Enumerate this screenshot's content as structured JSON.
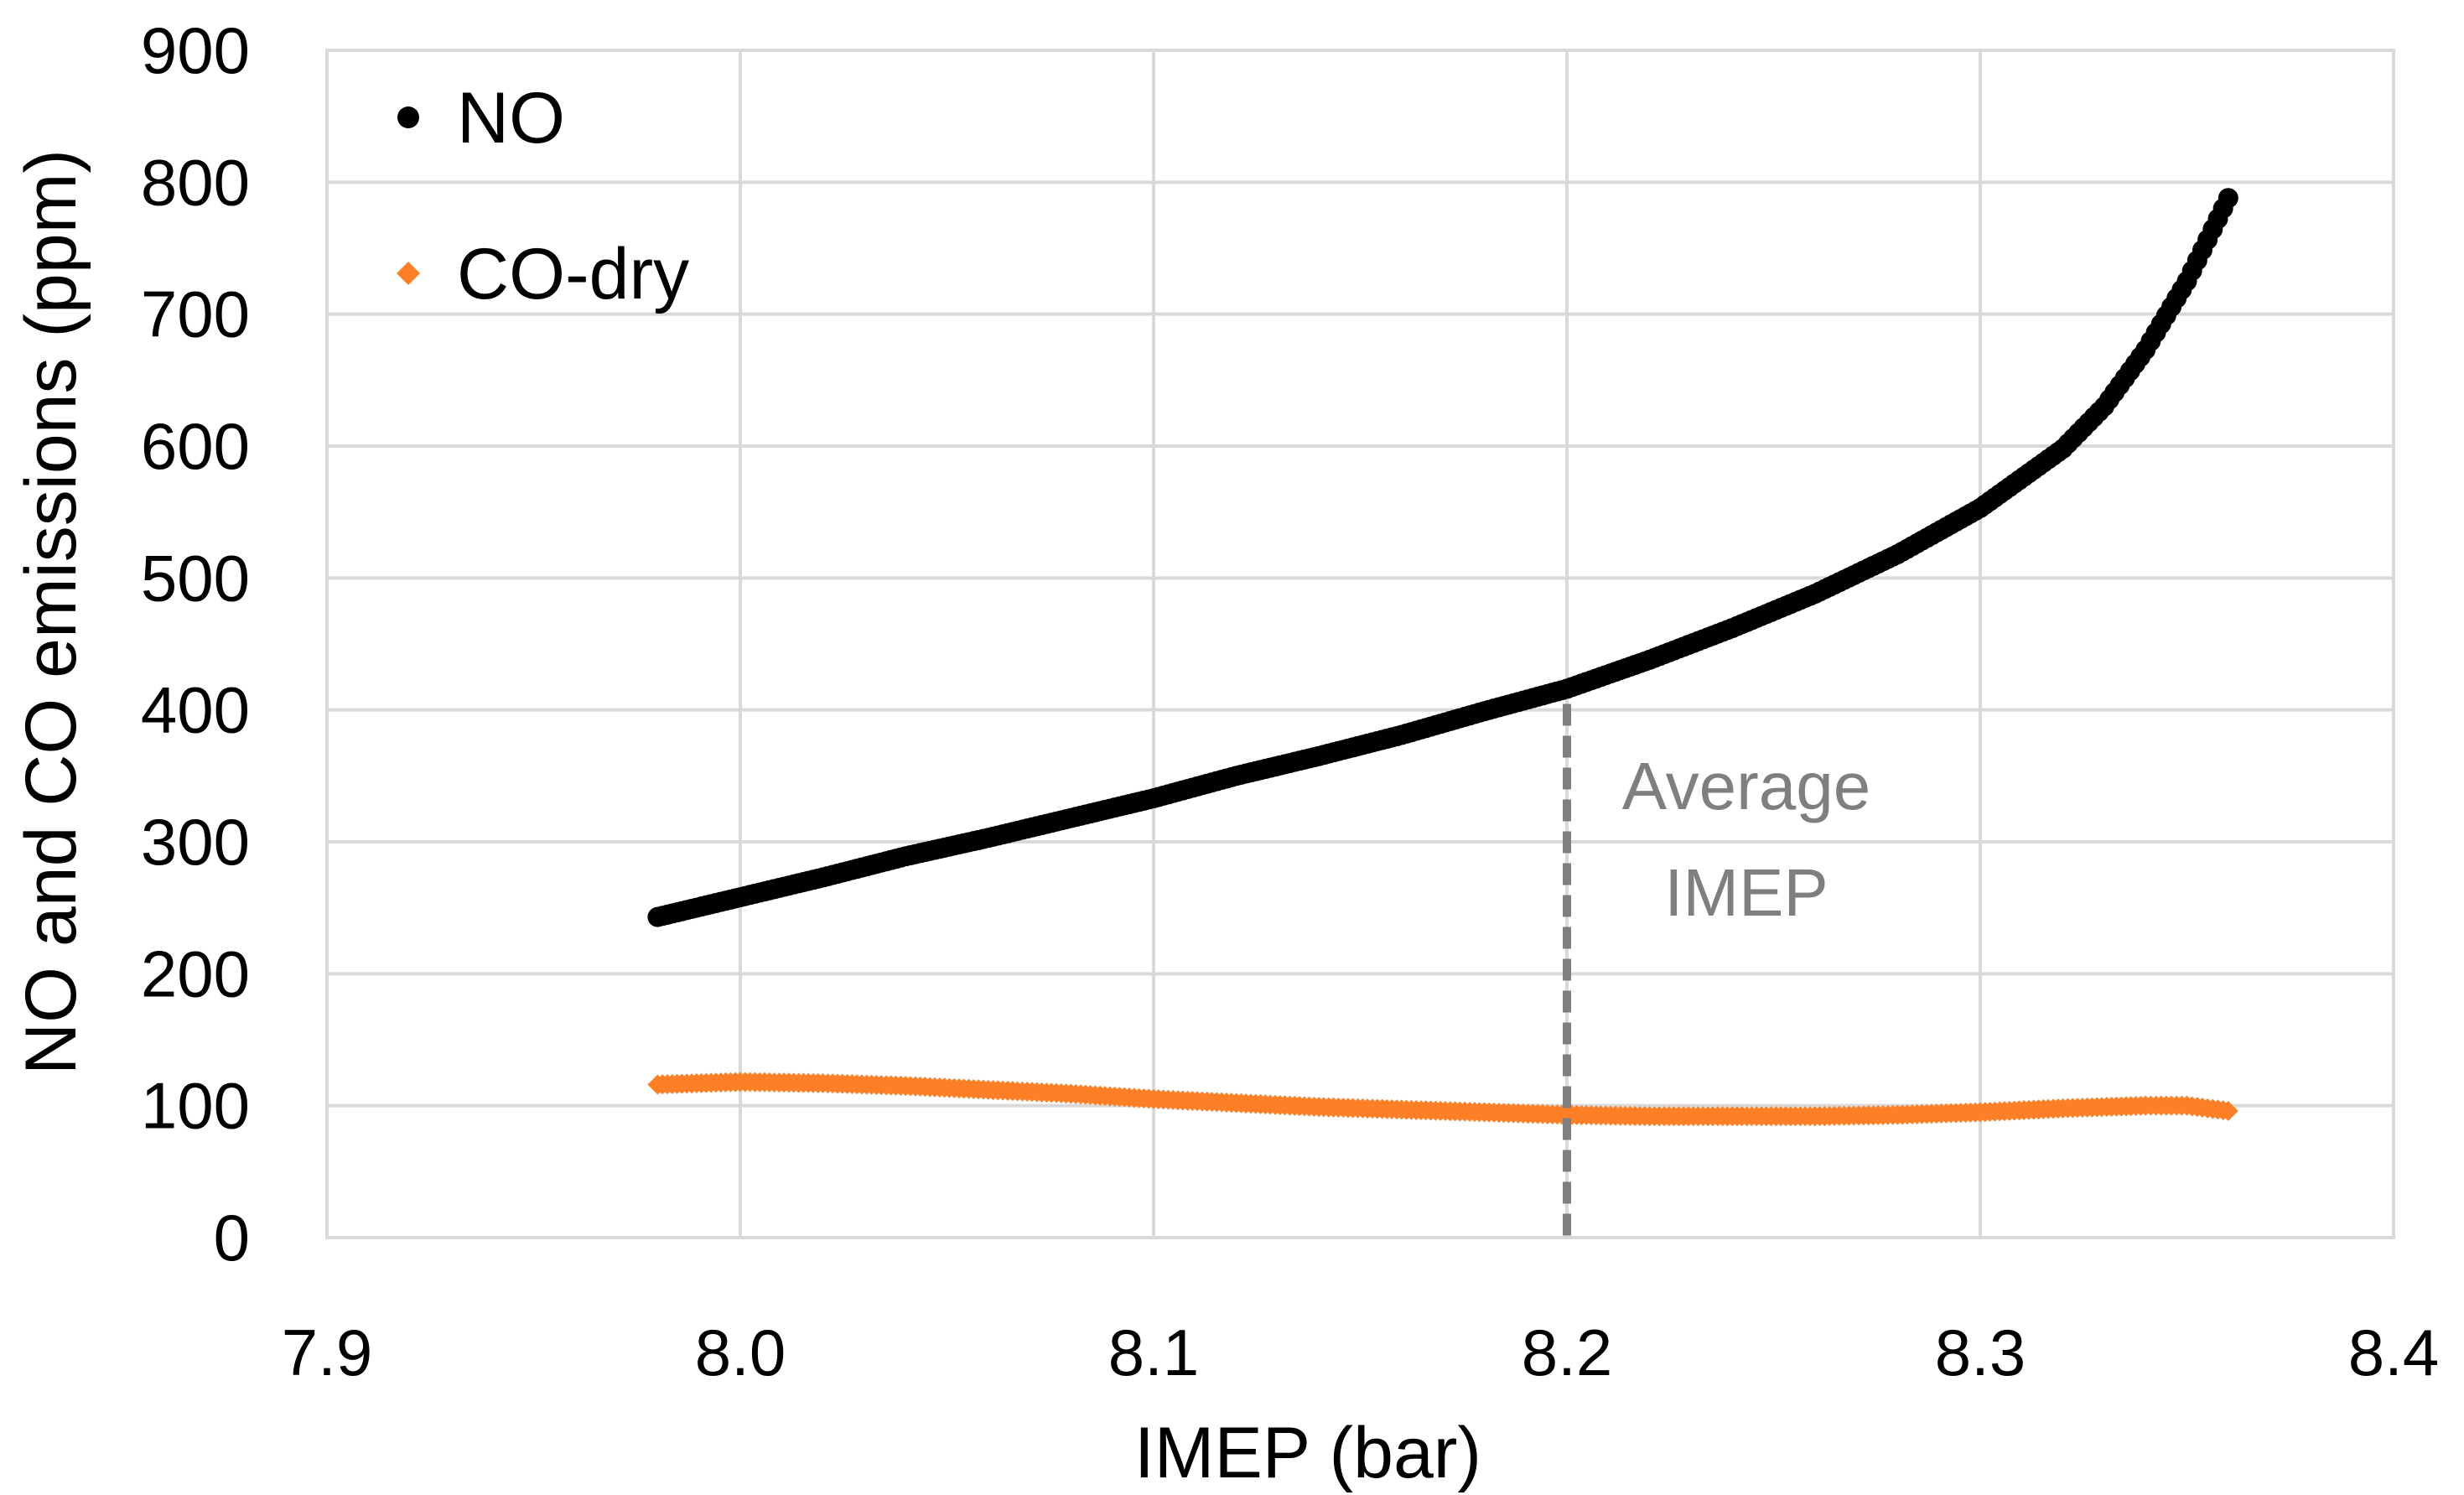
{
  "chart_data": {
    "type": "scatter",
    "title": "",
    "xlabel": "IMEP (bar)",
    "ylabel": "NO and CO emissions (ppm)",
    "xlim": [
      7.9,
      8.4
    ],
    "ylim": [
      0,
      900
    ],
    "x_ticks": [
      "7.9",
      "8.0",
      "8.1",
      "8.2",
      "8.3",
      "8.4"
    ],
    "y_ticks": [
      "0",
      "100",
      "200",
      "300",
      "400",
      "500",
      "600",
      "700",
      "800",
      "900"
    ],
    "grid": true,
    "legend_position": "top-left",
    "series": [
      {
        "name": "NO",
        "color": "#000000",
        "marker": "circle",
        "x": [
          7.98,
          8.0,
          8.02,
          8.04,
          8.06,
          8.08,
          8.1,
          8.12,
          8.14,
          8.16,
          8.18,
          8.2,
          8.22,
          8.24,
          8.26,
          8.28,
          8.3,
          8.32,
          8.33,
          8.34,
          8.35,
          8.36
        ],
        "y": [
          243,
          258,
          273,
          289,
          303,
          318,
          333,
          350,
          365,
          381,
          399,
          416,
          438,
          462,
          488,
          518,
          553,
          598,
          630,
          673,
          725,
          788
        ]
      },
      {
        "name": "CO-dry",
        "color": "#ff7f27",
        "marker": "diamond",
        "x": [
          7.98,
          8.0,
          8.02,
          8.04,
          8.06,
          8.08,
          8.1,
          8.12,
          8.14,
          8.16,
          8.18,
          8.2,
          8.22,
          8.24,
          8.26,
          8.28,
          8.3,
          8.32,
          8.34,
          8.35,
          8.36
        ],
        "y": [
          116,
          118,
          117,
          115,
          112,
          109,
          105,
          102,
          99,
          97,
          95,
          93,
          92,
          92,
          92,
          93,
          95,
          98,
          100,
          100,
          96
        ]
      }
    ],
    "annotations": [
      {
        "text_line1": "Average",
        "text_line2": "IMEP",
        "x": 8.2,
        "y_top": 416,
        "y_bottom": 0,
        "color": "#7f7f7f"
      }
    ]
  }
}
